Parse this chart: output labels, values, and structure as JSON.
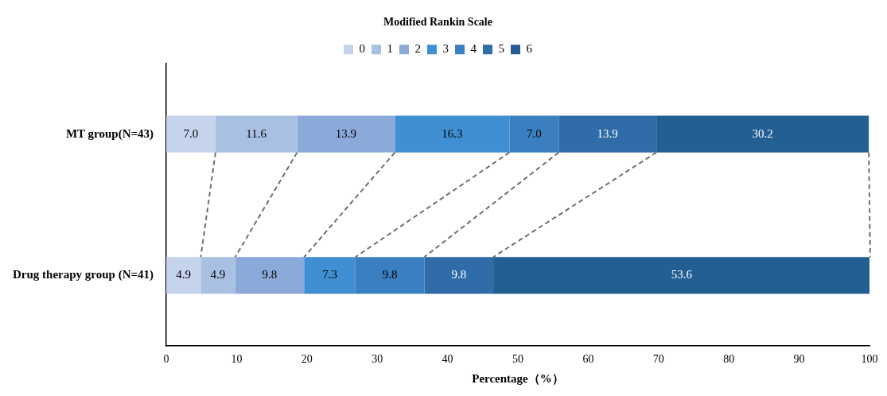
{
  "chart_data": {
    "type": "bar",
    "orientation": "horizontal",
    "stacked": true,
    "title": "Modified Rankin Scale",
    "xlabel": "Percentage（%）",
    "categories": [
      "MT group(N=43)",
      "Drug therapy group (N=41)"
    ],
    "series": [
      {
        "name": "0",
        "color": "#c5d3ec",
        "values": [
          7.0,
          4.9
        ],
        "value_labels": [
          "7.0",
          "4.9"
        ]
      },
      {
        "name": "1",
        "color": "#a8c0e2",
        "values": [
          11.6,
          4.9
        ],
        "value_labels": [
          "11.6",
          "4.9"
        ]
      },
      {
        "name": "2",
        "color": "#8caad9",
        "values": [
          13.9,
          9.8
        ],
        "value_labels": [
          "13.9",
          "9.8"
        ]
      },
      {
        "name": "3",
        "color": "#3f8fd2",
        "values": [
          16.3,
          7.3
        ],
        "value_labels": [
          "16.3",
          "7.3"
        ]
      },
      {
        "name": "4",
        "color": "#3a7fc0",
        "values": [
          7.0,
          9.8
        ],
        "value_labels": [
          "7.0",
          "9.8"
        ]
      },
      {
        "name": "5",
        "color": "#2f6ca8",
        "values": [
          13.9,
          9.8
        ],
        "value_labels": [
          "13.9",
          "9.8"
        ]
      },
      {
        "name": "6",
        "color": "#245f93",
        "values": [
          30.2,
          53.6
        ],
        "value_labels": [
          "30.2",
          "53.6"
        ]
      }
    ],
    "xlim": [
      0,
      100
    ],
    "xticks": [
      0,
      10,
      20,
      30,
      40,
      50,
      60,
      70,
      80,
      90,
      100
    ],
    "grid": false,
    "legend": "top"
  }
}
